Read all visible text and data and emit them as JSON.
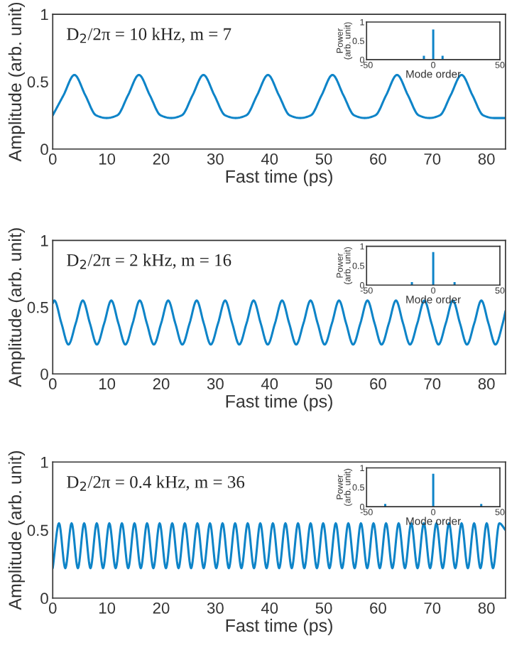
{
  "chart_data": [
    {
      "type": "line",
      "xlabel": "Fast time (ps)",
      "ylabel": "Amplitude (arb. unit)",
      "annotations": [
        "D$_{2}$/2π = 10 kHz, m = 7"
      ],
      "xlim": [
        0,
        83.5
      ],
      "xticks": [
        0,
        10,
        20,
        30,
        40,
        50,
        60,
        70,
        80
      ],
      "ylim": [
        0,
        1
      ],
      "yticks": [
        0,
        0.5,
        1
      ],
      "grid": false,
      "legend": false,
      "series": [
        {
          "color": "#0e84c8",
          "x": [
            0,
            2,
            4,
            6,
            8,
            9.95,
            11.9,
            13.9,
            15.9,
            17.9,
            19.9,
            21.85,
            23.8,
            25.8,
            27.8,
            29.8,
            31.8,
            33.75,
            35.7,
            37.7,
            39.7,
            41.7,
            43.7,
            45.65,
            47.6,
            49.6,
            51.6,
            53.6,
            55.6,
            57.55,
            59.5,
            61.5,
            63.5,
            65.5,
            67.5,
            69.45,
            71.4,
            73.4,
            75.4,
            77.4,
            79.4,
            81.35,
            83.5
          ],
          "values": [
            0.25,
            0.4,
            0.55,
            0.4,
            0.25,
            0.23,
            0.25,
            0.4,
            0.55,
            0.4,
            0.25,
            0.23,
            0.25,
            0.4,
            0.55,
            0.4,
            0.25,
            0.23,
            0.25,
            0.4,
            0.55,
            0.4,
            0.25,
            0.23,
            0.25,
            0.4,
            0.55,
            0.4,
            0.25,
            0.23,
            0.25,
            0.4,
            0.55,
            0.4,
            0.25,
            0.23,
            0.25,
            0.4,
            0.55,
            0.4,
            0.25,
            0.23,
            0.23
          ]
        }
      ]
    },
    {
      "type": "bar",
      "xlabel": "Mode order",
      "ylabel": "Power\n(arb. unit)",
      "x": [
        -7,
        0,
        7
      ],
      "values": [
        0.1,
        0.8,
        0.1
      ],
      "xlim": [
        -50,
        50
      ],
      "xticks": [
        -50,
        0,
        50
      ],
      "ylim": [
        0,
        1
      ],
      "yticks": [
        0,
        0.5,
        1
      ],
      "grid": false,
      "color": "#0e84c8"
    },
    {
      "type": "line",
      "xlabel": "Fast time (ps)",
      "ylabel": "Amplitude (arb. unit)",
      "annotations": [
        "D$_{2}$/2π = 2 kHz, m = 16"
      ],
      "xlim": [
        0,
        83.5
      ],
      "xticks": [
        0,
        10,
        20,
        30,
        40,
        50,
        60,
        70,
        80
      ],
      "ylim": [
        0,
        1
      ],
      "yticks": [
        0,
        0.5,
        1
      ],
      "grid": false,
      "legend": false,
      "series": [
        {
          "color": "#0e84c8",
          "x": [
            0,
            0.3,
            1.6,
            2.9,
            4.25,
            5.55,
            6.85,
            8.15,
            9.5,
            10.8,
            12.1,
            13.4,
            14.75,
            16.05,
            17.35,
            18.65,
            20,
            21.3,
            22.6,
            23.9,
            25.25,
            26.55,
            27.85,
            29.15,
            30.5,
            31.8,
            33.1,
            34.4,
            35.75,
            37.05,
            38.35,
            39.65,
            41,
            42.3,
            43.6,
            44.9,
            46.25,
            47.55,
            48.85,
            50.15,
            51.5,
            52.8,
            54.1,
            55.4,
            56.75,
            58.05,
            59.35,
            60.65,
            62,
            63.3,
            64.6,
            65.9,
            67.25,
            68.55,
            69.85,
            71.15,
            72.5,
            73.8,
            75.1,
            76.4,
            77.75,
            79.05,
            80.35,
            81.65,
            83,
            83.5
          ],
          "values": [
            0.53,
            0.55,
            0.38,
            0.22,
            0.38,
            0.55,
            0.38,
            0.22,
            0.38,
            0.55,
            0.38,
            0.22,
            0.38,
            0.55,
            0.38,
            0.22,
            0.38,
            0.55,
            0.38,
            0.22,
            0.38,
            0.55,
            0.38,
            0.22,
            0.38,
            0.55,
            0.38,
            0.22,
            0.38,
            0.55,
            0.38,
            0.22,
            0.38,
            0.55,
            0.38,
            0.22,
            0.38,
            0.55,
            0.38,
            0.22,
            0.38,
            0.55,
            0.38,
            0.22,
            0.38,
            0.55,
            0.38,
            0.22,
            0.38,
            0.55,
            0.38,
            0.22,
            0.38,
            0.55,
            0.38,
            0.22,
            0.38,
            0.55,
            0.38,
            0.22,
            0.38,
            0.55,
            0.38,
            0.22,
            0.38,
            0.47
          ]
        }
      ]
    },
    {
      "type": "bar",
      "xlabel": "Mode order",
      "ylabel": "Power\n(arb. unit)",
      "x": [
        -16,
        0,
        16
      ],
      "values": [
        0.08,
        0.85,
        0.08
      ],
      "xlim": [
        -50,
        50
      ],
      "xticks": [
        -50,
        0,
        50
      ],
      "ylim": [
        0,
        1
      ],
      "yticks": [
        0,
        0.5,
        1
      ],
      "grid": false,
      "color": "#0e84c8"
    },
    {
      "type": "line",
      "xlabel": "Fast time (ps)",
      "ylabel": "Amplitude (arb. unit)",
      "annotations": [
        "D$_{2}$/2π = 0.4 kHz, m = 36"
      ],
      "xlim": [
        0,
        83.5
      ],
      "xticks": [
        0,
        10,
        20,
        30,
        40,
        50,
        60,
        70,
        80
      ],
      "ylim": [
        0,
        1
      ],
      "yticks": [
        0,
        0.5,
        1
      ],
      "grid": false,
      "legend": false,
      "series": [
        {
          "color": "#0e84c8",
          "x": [
            0,
            1.16,
            2.32,
            3.48,
            4.64,
            5.8,
            6.96,
            8.12,
            9.28,
            10.44,
            11.6,
            12.76,
            13.92,
            15.08,
            16.24,
            17.4,
            18.56,
            19.72,
            20.88,
            22.04,
            23.2,
            24.36,
            25.52,
            26.68,
            27.84,
            29,
            30.16,
            31.32,
            32.48,
            33.64,
            34.8,
            35.96,
            37.12,
            38.28,
            39.44,
            40.6,
            41.76,
            42.92,
            44.08,
            45.24,
            46.4,
            47.56,
            48.72,
            49.88,
            51.04,
            52.2,
            53.36,
            54.52,
            55.68,
            56.84,
            58,
            59.16,
            60.32,
            61.48,
            62.64,
            63.8,
            64.96,
            66.12,
            67.28,
            68.44,
            69.6,
            70.76,
            71.92,
            73.08,
            74.24,
            75.4,
            76.56,
            77.72,
            78.88,
            80.04,
            81.2,
            82.36,
            83.5
          ],
          "values": [
            0.22,
            0.55,
            0.22,
            0.55,
            0.22,
            0.55,
            0.22,
            0.55,
            0.22,
            0.55,
            0.22,
            0.55,
            0.22,
            0.55,
            0.22,
            0.55,
            0.22,
            0.55,
            0.22,
            0.55,
            0.22,
            0.55,
            0.22,
            0.55,
            0.22,
            0.55,
            0.22,
            0.55,
            0.22,
            0.55,
            0.22,
            0.55,
            0.22,
            0.55,
            0.22,
            0.55,
            0.22,
            0.55,
            0.22,
            0.55,
            0.22,
            0.55,
            0.22,
            0.55,
            0.22,
            0.55,
            0.22,
            0.55,
            0.22,
            0.55,
            0.22,
            0.55,
            0.22,
            0.55,
            0.22,
            0.55,
            0.22,
            0.55,
            0.22,
            0.55,
            0.22,
            0.55,
            0.22,
            0.55,
            0.22,
            0.55,
            0.22,
            0.55,
            0.22,
            0.55,
            0.22,
            0.55,
            0.5
          ]
        }
      ]
    },
    {
      "type": "bar",
      "xlabel": "Mode order",
      "ylabel": "Power\n(arb. unit)",
      "x": [
        -36,
        0,
        36
      ],
      "values": [
        0.07,
        0.85,
        0.07
      ],
      "xlim": [
        -50,
        50
      ],
      "xticks": [
        -50,
        0,
        50
      ],
      "ylim": [
        0,
        1
      ],
      "yticks": [
        0,
        0.5,
        1
      ],
      "grid": false,
      "color": "#0e84c8"
    }
  ]
}
